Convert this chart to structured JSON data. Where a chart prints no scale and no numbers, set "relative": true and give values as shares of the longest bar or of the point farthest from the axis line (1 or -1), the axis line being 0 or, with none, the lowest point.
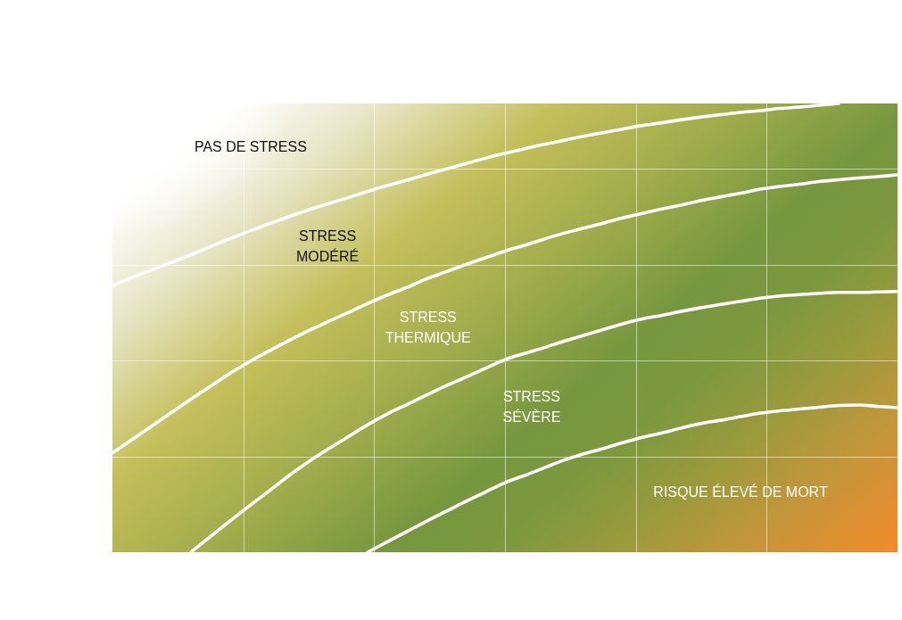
{
  "chart_data": {
    "type": "line",
    "relative": true,
    "grid": true,
    "categories": [
      null,
      null,
      null,
      null,
      null,
      null,
      null,
      null,
      null,
      null,
      null,
      null,
      null,
      null,
      null,
      null,
      null,
      null,
      null,
      null,
      null,
      null,
      null,
      null,
      null,
      null,
      null,
      null,
      null,
      null,
      null,
      null,
      null,
      null,
      null,
      null,
      null,
      null,
      null,
      null,
      null
    ],
    "series": [
      {
        "color": "#ffffff",
        "values": [
          0.594,
          0.612,
          0.629,
          0.646,
          0.663,
          0.681,
          0.699,
          0.716,
          0.732,
          0.748,
          0.763,
          0.777,
          0.79,
          0.804,
          0.817,
          0.829,
          0.842,
          0.854,
          0.866,
          0.878,
          0.889,
          0.899,
          0.909,
          0.918,
          0.927,
          0.935,
          0.943,
          0.951,
          0.957,
          0.964,
          0.97,
          0.975,
          0.98,
          0.984,
          0.989,
          0.992,
          0.996,
          1,
          null,
          null,
          null
        ]
      },
      {
        "color": "#ffffff",
        "values": [
          0.221,
          0.251,
          0.281,
          0.311,
          0.341,
          0.37,
          0.399,
          0.425,
          0.449,
          0.472,
          0.494,
          0.514,
          0.534,
          0.554,
          0.573,
          0.59,
          0.609,
          0.625,
          0.641,
          0.656,
          0.671,
          0.684,
          0.698,
          0.711,
          0.722,
          0.733,
          0.745,
          0.755,
          0.765,
          0.774,
          0.784,
          0.792,
          0.8,
          0.809,
          0.815,
          0.82,
          0.826,
          0.83,
          0.834,
          0.837,
          0.841
        ]
      },
      {
        "color": "#ffffff",
        "values": [
          null,
          null,
          null,
          null,
          0,
          0.035,
          0.07,
          0.104,
          0.137,
          0.171,
          0.202,
          0.23,
          0.257,
          0.284,
          0.308,
          0.329,
          0.35,
          0.371,
          0.39,
          0.41,
          0.429,
          0.443,
          0.456,
          0.47,
          0.483,
          0.496,
          0.509,
          0.52,
          0.528,
          0.537,
          0.545,
          0.552,
          0.559,
          0.566,
          0.571,
          0.574,
          0.577,
          0.579,
          0.579,
          0.58,
          0.581
        ]
      },
      {
        "color": "#ffffff",
        "values": [
          null,
          null,
          null,
          null,
          null,
          null,
          null,
          null,
          null,
          null,
          null,
          null,
          null,
          0,
          0.023,
          0.046,
          0.069,
          0.091,
          0.113,
          0.134,
          0.155,
          0.171,
          0.188,
          0.205,
          0.219,
          0.231,
          0.244,
          0.256,
          0.266,
          0.277,
          0.287,
          0.294,
          0.302,
          0.31,
          0.315,
          0.319,
          0.323,
          0.327,
          0.328,
          0.325,
          0.322
        ]
      }
    ],
    "annotations": [
      "PAS DE STRESS",
      "STRESS\nMODÉRÉ",
      "STRESS\nTHERMIQUE",
      "STRESS\nSÉVÈRE",
      "RISQUE ÉLEVÉ DE MORT"
    ]
  }
}
